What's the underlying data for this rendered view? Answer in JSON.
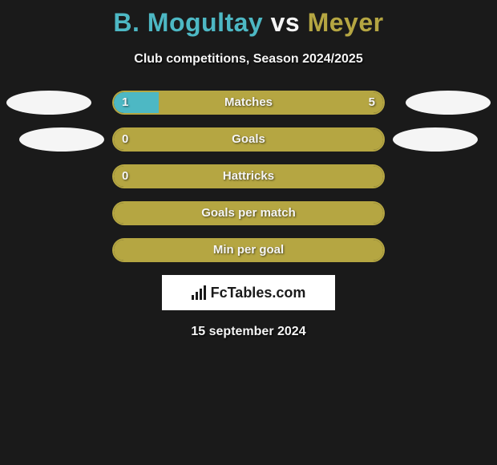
{
  "title": {
    "player1": "B. Mogultay",
    "vs": "vs",
    "player2": "Meyer",
    "player1_color": "#4db8c4",
    "player2_color": "#b5a642",
    "vs_color": "#f5f5f5"
  },
  "subtitle": "Club competitions, Season 2024/2025",
  "date": "15 september 2024",
  "logo_text": "FcTables.com",
  "colors": {
    "background": "#1a1a1a",
    "bar_border": "#b5a642",
    "bar_fill_right": "#b5a642",
    "bar_fill_left": "#4db8c4",
    "ellipse": "#f5f5f5"
  },
  "rows": [
    {
      "label": "Matches",
      "left_value": "1",
      "right_value": "5",
      "left_pct": 16.67,
      "right_pct": 83.33,
      "show_left_ellipse": true,
      "show_right_ellipse": true,
      "ellipse_inset": false
    },
    {
      "label": "Goals",
      "left_value": "0",
      "right_value": "",
      "left_pct": 0,
      "right_pct": 100,
      "show_left_ellipse": true,
      "show_right_ellipse": true,
      "ellipse_inset": true
    },
    {
      "label": "Hattricks",
      "left_value": "0",
      "right_value": "",
      "left_pct": 0,
      "right_pct": 100,
      "show_left_ellipse": false,
      "show_right_ellipse": false,
      "ellipse_inset": false
    },
    {
      "label": "Goals per match",
      "left_value": "",
      "right_value": "",
      "left_pct": 0,
      "right_pct": 100,
      "show_left_ellipse": false,
      "show_right_ellipse": false,
      "ellipse_inset": false
    },
    {
      "label": "Min per goal",
      "left_value": "",
      "right_value": "",
      "left_pct": 0,
      "right_pct": 100,
      "show_left_ellipse": false,
      "show_right_ellipse": false,
      "ellipse_inset": false
    }
  ]
}
